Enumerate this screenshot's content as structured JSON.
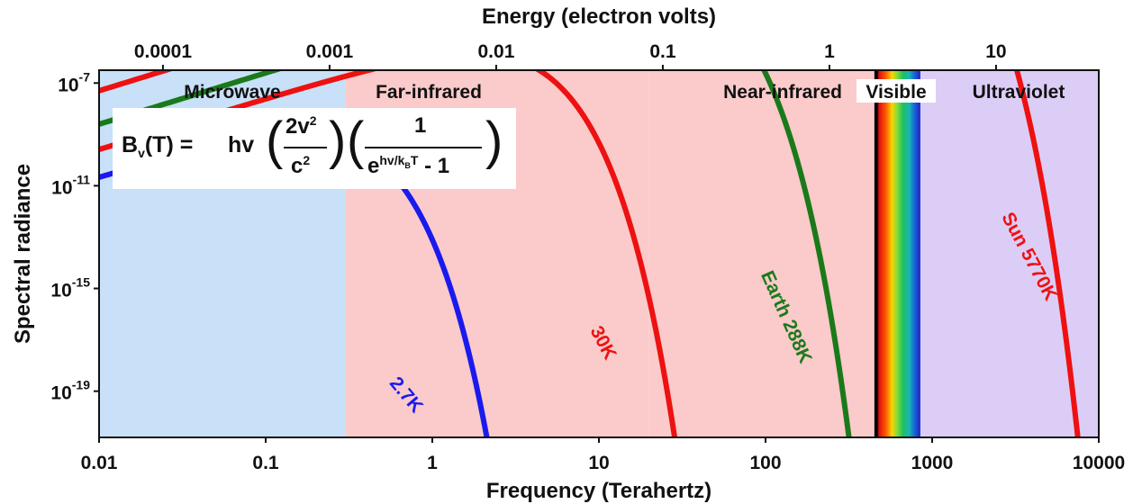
{
  "chart_data": {
    "type": "line",
    "title": "",
    "xlabel": "Frequency (Terahertz)",
    "ylabel": "Spectral radiance",
    "top_axis_label": "Energy (electron volts)",
    "xscale": "log",
    "yscale": "log",
    "xlim": [
      0.01,
      10000
    ],
    "ylim_log10": [
      -20.8,
      -6.5
    ],
    "x_ticks": [
      0.01,
      0.1,
      1,
      10,
      100,
      1000,
      10000
    ],
    "x_tick_labels": [
      "0.01",
      "0.1",
      "1",
      "10",
      "100",
      "1000",
      "10000"
    ],
    "top_ticks": [
      0.0001,
      0.001,
      0.01,
      0.1,
      1,
      10
    ],
    "top_tick_labels": [
      "0.0001",
      "0.001",
      "0.01",
      "0.1",
      "1",
      "10"
    ],
    "y_ticks_log10": [
      -7,
      -11,
      -15,
      -19
    ],
    "y_tick_labels": [
      {
        "base": "10",
        "exp": "-7"
      },
      {
        "base": "10",
        "exp": "-11"
      },
      {
        "base": "10",
        "exp": "-15"
      },
      {
        "base": "10",
        "exp": "-19"
      }
    ],
    "regions": [
      {
        "name": "Microwave",
        "from": 0.01,
        "to": 0.3,
        "color": "#c8e0f8"
      },
      {
        "name": "Far-infrared",
        "from": 0.3,
        "to": 20,
        "color": "#fbcaca"
      },
      {
        "name": "Near-infrared",
        "from": 20,
        "to": 450,
        "color": "#fbcaca"
      },
      {
        "name": "Visible",
        "from": 450,
        "to": 850,
        "color": "#ffffff"
      },
      {
        "name": "Ultraviolet",
        "from": 850,
        "to": 10000,
        "color": "#dccdf7"
      }
    ],
    "series": [
      {
        "name": "Sun 5770K",
        "temperature_K": 5770,
        "color": "#ee1111"
      },
      {
        "name": "Earth 288K",
        "temperature_K": 288,
        "color": "#1a7a1a"
      },
      {
        "name": "30K",
        "temperature_K": 30,
        "color": "#ee1111"
      },
      {
        "name": "2.7K",
        "temperature_K": 2.7,
        "color": "#1a1aee"
      }
    ],
    "formula": {
      "lhs_main": "B",
      "lhs_sub": "v",
      "lhs_arg": "(T) =",
      "hv": "hv",
      "num1": "2v",
      "num1_sup": "2",
      "den1": "c",
      "den1_sup": "2",
      "num2": "1",
      "den2_e": "e",
      "den2_exp": "hv/k",
      "den2_exp_sub": "B",
      "den2_exp_T": "T",
      "den2_rest": " - 1"
    }
  }
}
